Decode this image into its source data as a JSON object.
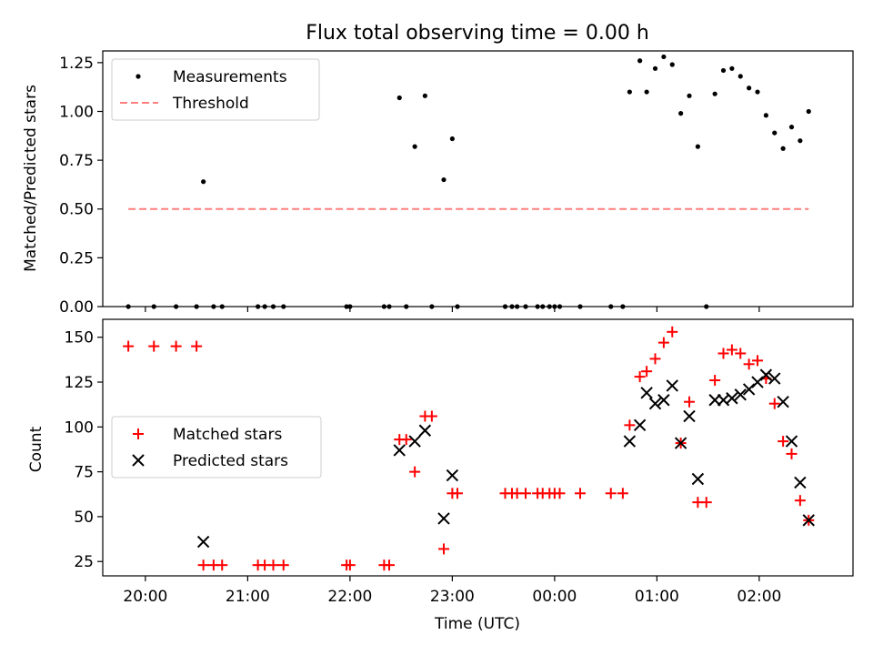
{
  "chart_data": [
    {
      "type": "scatter",
      "title": "Flux total observing time = 0.00 h",
      "ylabel": "Matched/Predicted stars",
      "xlabel": "",
      "xlim": [
        "19:35",
        "02:55"
      ],
      "ylim": [
        0,
        1.31
      ],
      "yticks": [
        0.0,
        0.25,
        0.5,
        0.75,
        1.0,
        1.25
      ],
      "ytick_labels": [
        "0.00",
        "0.25",
        "0.50",
        "0.75",
        "1.00",
        "1.25"
      ],
      "legend": {
        "position": "top-left",
        "entries": [
          "Measurements",
          "Threshold"
        ]
      },
      "series": [
        {
          "name": "Measurements",
          "marker": "dot",
          "color": "#000000",
          "points": [
            [
              "19:50",
              0.0
            ],
            [
              "20:05",
              0.0
            ],
            [
              "20:18",
              0.0
            ],
            [
              "20:30",
              0.0
            ],
            [
              "20:34",
              0.64
            ],
            [
              "20:40",
              0.0
            ],
            [
              "20:45",
              0.0
            ],
            [
              "21:06",
              0.0
            ],
            [
              "21:10",
              0.0
            ],
            [
              "21:15",
              0.0
            ],
            [
              "21:21",
              0.0
            ],
            [
              "21:58",
              0.0
            ],
            [
              "22:00",
              0.0
            ],
            [
              "22:20",
              0.0
            ],
            [
              "22:23",
              0.0
            ],
            [
              "22:29",
              1.07
            ],
            [
              "22:33",
              0.0
            ],
            [
              "22:38",
              0.82
            ],
            [
              "22:44",
              1.08
            ],
            [
              "22:48",
              0.0
            ],
            [
              "22:55",
              0.65
            ],
            [
              "23:00",
              0.86
            ],
            [
              "23:03",
              0.0
            ],
            [
              "23:31",
              0.0
            ],
            [
              "23:35",
              0.0
            ],
            [
              "23:38",
              0.0
            ],
            [
              "23:43",
              0.0
            ],
            [
              "23:50",
              0.0
            ],
            [
              "23:53",
              0.0
            ],
            [
              "23:57",
              0.0
            ],
            [
              "24:00",
              0.0
            ],
            [
              "24:03",
              0.0
            ],
            [
              "24:15",
              0.0
            ],
            [
              "24:33",
              0.0
            ],
            [
              "24:40",
              0.0
            ],
            [
              "24:44",
              1.1
            ],
            [
              "24:50",
              1.26
            ],
            [
              "24:54",
              1.1
            ],
            [
              "24:59",
              1.22
            ],
            [
              "25:04",
              1.28
            ],
            [
              "25:09",
              1.24
            ],
            [
              "25:14",
              0.99
            ],
            [
              "25:19",
              1.08
            ],
            [
              "25:24",
              0.82
            ],
            [
              "25:29",
              0.0
            ],
            [
              "25:34",
              1.09
            ],
            [
              "25:39",
              1.21
            ],
            [
              "25:44",
              1.22
            ],
            [
              "25:49",
              1.18
            ],
            [
              "25:54",
              1.12
            ],
            [
              "25:59",
              1.1
            ],
            [
              "26:04",
              0.98
            ],
            [
              "26:09",
              0.89
            ],
            [
              "26:14",
              0.81
            ],
            [
              "26:19",
              0.92
            ],
            [
              "26:24",
              0.85
            ],
            [
              "26:29",
              1.0
            ]
          ]
        },
        {
          "name": "Threshold",
          "type": "line",
          "style": "dashed",
          "color": "#ff7f7f",
          "points": [
            [
              "19:50",
              0.5
            ],
            [
              "26:29",
              0.5
            ]
          ]
        }
      ]
    },
    {
      "type": "scatter",
      "title": "",
      "ylabel": "Count",
      "xlabel": "Time (UTC)",
      "xlim": [
        "19:35",
        "02:55"
      ],
      "ylim": [
        17,
        160
      ],
      "yticks": [
        25,
        50,
        75,
        100,
        125,
        150
      ],
      "ytick_labels": [
        "25",
        "50",
        "75",
        "100",
        "125",
        "150"
      ],
      "xticks": [
        "20:00",
        "21:00",
        "22:00",
        "23:00",
        "00:00",
        "01:00",
        "02:00"
      ],
      "legend": {
        "position": "center-left",
        "entries": [
          "Matched stars",
          "Predicted stars"
        ]
      },
      "series": [
        {
          "name": "Matched stars",
          "marker": "plus",
          "color": "#ff0000",
          "points": [
            [
              "19:50",
              145
            ],
            [
              "20:05",
              145
            ],
            [
              "20:18",
              145
            ],
            [
              "20:30",
              145
            ],
            [
              "20:34",
              23
            ],
            [
              "20:40",
              23
            ],
            [
              "20:45",
              23
            ],
            [
              "21:06",
              23
            ],
            [
              "21:10",
              23
            ],
            [
              "21:15",
              23
            ],
            [
              "21:21",
              23
            ],
            [
              "21:58",
              23
            ],
            [
              "22:00",
              23
            ],
            [
              "22:20",
              23
            ],
            [
              "22:23",
              23
            ],
            [
              "22:29",
              93
            ],
            [
              "22:33",
              93
            ],
            [
              "22:38",
              75
            ],
            [
              "22:44",
              106
            ],
            [
              "22:48",
              106
            ],
            [
              "22:55",
              32
            ],
            [
              "23:00",
              63
            ],
            [
              "23:03",
              63
            ],
            [
              "23:31",
              63
            ],
            [
              "23:35",
              63
            ],
            [
              "23:38",
              63
            ],
            [
              "23:43",
              63
            ],
            [
              "23:50",
              63
            ],
            [
              "23:53",
              63
            ],
            [
              "23:57",
              63
            ],
            [
              "24:00",
              63
            ],
            [
              "24:03",
              63
            ],
            [
              "24:15",
              63
            ],
            [
              "24:33",
              63
            ],
            [
              "24:40",
              63
            ],
            [
              "24:44",
              101
            ],
            [
              "24:50",
              128
            ],
            [
              "24:54",
              131
            ],
            [
              "24:59",
              138
            ],
            [
              "25:04",
              147
            ],
            [
              "25:09",
              153
            ],
            [
              "25:14",
              91
            ],
            [
              "25:19",
              114
            ],
            [
              "25:24",
              58
            ],
            [
              "25:29",
              58
            ],
            [
              "25:34",
              126
            ],
            [
              "25:39",
              141
            ],
            [
              "25:44",
              143
            ],
            [
              "25:49",
              141
            ],
            [
              "25:54",
              135
            ],
            [
              "25:59",
              137
            ],
            [
              "26:04",
              127
            ],
            [
              "26:09",
              113
            ],
            [
              "26:14",
              92
            ],
            [
              "26:19",
              85
            ],
            [
              "26:24",
              59
            ],
            [
              "26:29",
              48
            ]
          ]
        },
        {
          "name": "Predicted stars",
          "marker": "x",
          "color": "#000000",
          "points": [
            [
              "20:34",
              36
            ],
            [
              "22:29",
              87
            ],
            [
              "22:38",
              92
            ],
            [
              "22:44",
              98
            ],
            [
              "22:55",
              49
            ],
            [
              "23:00",
              73
            ],
            [
              "24:44",
              92
            ],
            [
              "24:50",
              101
            ],
            [
              "24:54",
              119
            ],
            [
              "24:59",
              113
            ],
            [
              "25:04",
              115
            ],
            [
              "25:09",
              123
            ],
            [
              "25:14",
              91
            ],
            [
              "25:19",
              106
            ],
            [
              "25:24",
              71
            ],
            [
              "25:34",
              115
            ],
            [
              "25:39",
              115
            ],
            [
              "25:44",
              116
            ],
            [
              "25:49",
              118
            ],
            [
              "25:54",
              121
            ],
            [
              "25:59",
              125
            ],
            [
              "26:04",
              129
            ],
            [
              "26:09",
              127
            ],
            [
              "26:14",
              114
            ],
            [
              "26:19",
              92
            ],
            [
              "26:24",
              69
            ],
            [
              "26:29",
              48
            ]
          ]
        }
      ]
    }
  ]
}
